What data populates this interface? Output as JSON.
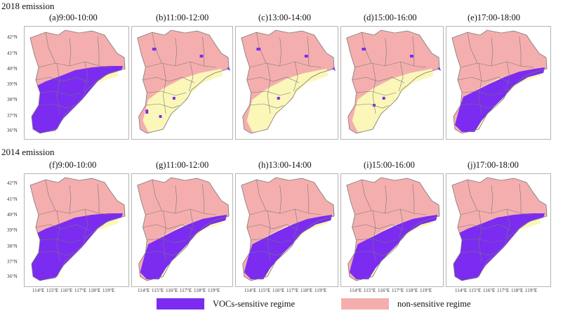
{
  "rows": [
    {
      "title": "2018 emission"
    },
    {
      "title": "2014 emission"
    }
  ],
  "panels": [
    {
      "label": "(a)9:00-10:00"
    },
    {
      "label": "(b)11:00-12:00"
    },
    {
      "label": "(c)13:00-14:00"
    },
    {
      "label": "(d)15:00-16:00"
    },
    {
      "label": "(e)17:00-18:00"
    },
    {
      "label": "(f)9:00-10:00"
    },
    {
      "label": "(g)11:00-12:00"
    },
    {
      "label": "(h)13:00-14:00"
    },
    {
      "label": "(i)15:00-16:00"
    },
    {
      "label": "(j)17:00-18:00"
    }
  ],
  "lat_ticks": [
    "42°N",
    "41°N",
    "40°N",
    "39°N",
    "38°N",
    "37°N",
    "36°N"
  ],
  "lon_ticks": [
    "114°E",
    "115°E",
    "116°E",
    "117°E",
    "118°E",
    "119°E"
  ],
  "legend": [
    {
      "label": "VOCs-sensitive regime",
      "color": "#7b2cf0"
    },
    {
      "label": "non-sensitive regime",
      "color": "#f5aeae"
    }
  ],
  "colors": {
    "transition": "#fbf7b8",
    "voc": "#7b2cf0",
    "non": "#f5aeae",
    "border": "#777777"
  }
}
